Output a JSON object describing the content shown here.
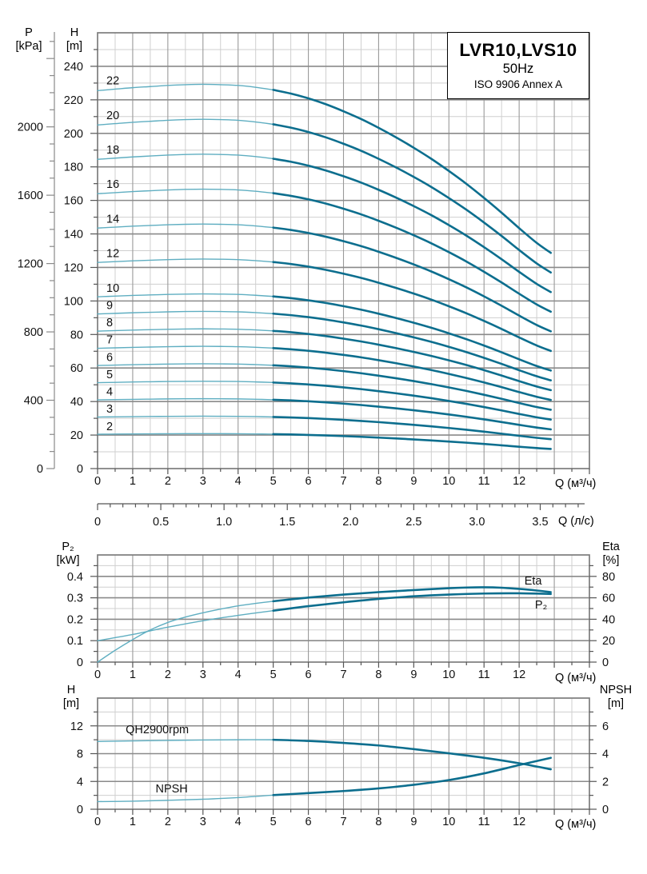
{
  "title_box": {
    "model": "LVR10,LVS10",
    "frequency": "50Hz",
    "standard": "ISO 9906 Annex A"
  },
  "colors": {
    "curve_bold": "#0c6e8e",
    "curve_thin": "#5faec1",
    "grid_minor": "#cfcfcf",
    "grid_major": "#9a9a9a",
    "frame": "#7d7d7d",
    "text": "#111111"
  },
  "axis_titles": {
    "main_pressure": "P",
    "main_pressure_unit": "[kPa]",
    "main_head": "H",
    "main_head_unit": "[m]",
    "main_x": "Q (м³/ч)",
    "secondary_x": "Q (л/с)",
    "power": "P₂",
    "power_unit": "[kW]",
    "eta": "Eta",
    "eta_unit": "[%]",
    "qh_head": "H",
    "qh_head_unit": "[m]",
    "npsh": "NPSH",
    "npsh_unit": "[m]",
    "power_x": "Q (м³/ч)",
    "npsh_x": "Q (м³/ч)"
  },
  "chart_data": [
    {
      "id": "main-qh",
      "type": "line",
      "title": "Stage head curves 2-22 stages",
      "x_axis": {
        "label": "Q (м³/ч)",
        "range": [
          0,
          14
        ],
        "tick_labels": [
          0,
          1,
          2,
          3,
          4,
          5,
          6,
          7,
          8,
          9,
          10,
          11,
          12
        ],
        "minor_step": 0.5
      },
      "x_axis_secondary": {
        "label": "Q (л/с)",
        "m3h_per_unit": 3.6,
        "tick_labels": [
          "0",
          "0.5",
          "1.0",
          "1.5",
          "2.0",
          "2.5",
          "3.0",
          "3.5"
        ],
        "minor_step": 0.1,
        "max_tick": 3.8
      },
      "y_axis_left": {
        "label": "H [m]",
        "range": [
          0,
          260
        ],
        "major_step": 20,
        "minor_step": 10,
        "tick_labels": [
          0,
          20,
          40,
          60,
          80,
          100,
          120,
          140,
          160,
          180,
          200,
          220,
          240
        ]
      },
      "y_axis_far_left": {
        "label": "P [kPa]",
        "kpa_per_m": 9.81,
        "major_step": 400,
        "minor_step": 100,
        "max": 2500,
        "tick_labels": [
          0,
          400,
          800,
          1200,
          1600,
          2000
        ]
      },
      "bold_from_q": 5,
      "curves": {
        "stages": [
          22,
          20,
          18,
          16,
          14,
          12,
          10,
          9,
          8,
          7,
          6,
          5,
          4,
          3,
          2
        ],
        "q": [
          0,
          0.5,
          1,
          1.5,
          2,
          2.5,
          3,
          3.5,
          4,
          4.5,
          5,
          5.5,
          6,
          6.5,
          7,
          7.5,
          8,
          8.5,
          9,
          9.5,
          10,
          10.5,
          11,
          11.5,
          12,
          12.5,
          12.9
        ],
        "per_stage_head": [
          10.25,
          10.29,
          10.33,
          10.36,
          10.39,
          10.41,
          10.42,
          10.41,
          10.39,
          10.34,
          10.27,
          10.17,
          10.04,
          9.88,
          9.69,
          9.48,
          9.24,
          8.98,
          8.7,
          8.4,
          8.07,
          7.72,
          7.34,
          6.94,
          6.52,
          6.12,
          5.85
        ]
      }
    },
    {
      "id": "power-efficiency",
      "type": "line",
      "title": "Power and efficiency",
      "x_axis": {
        "label": "Q (м³/ч)",
        "range": [
          0,
          14
        ],
        "tick_labels": [
          0,
          1,
          2,
          3,
          4,
          5,
          6,
          7,
          8,
          9,
          10,
          11,
          12
        ],
        "minor_step": 0.5
      },
      "y_axis_left": {
        "label": "P₂ [kW]",
        "range": [
          0,
          0.5
        ],
        "major_step": 0.1,
        "minor_step": 0.05,
        "tick_labels": [
          "0",
          "0.1",
          "0.2",
          "0.3",
          "0.4"
        ]
      },
      "y_axis_right": {
        "label": "Eta [%]",
        "range": [
          0,
          100
        ],
        "major_step": 20,
        "minor_step": 10,
        "tick_labels": [
          0,
          20,
          40,
          60,
          80
        ]
      },
      "bold_from_q": 5,
      "series": [
        {
          "name": "Eta",
          "label": "Eta",
          "axis": "right",
          "x": [
            0,
            0.5,
            1,
            1.5,
            2,
            2.5,
            3,
            3.5,
            4,
            4.5,
            5,
            6,
            7,
            8,
            9,
            10,
            10.5,
            11,
            11.5,
            12,
            12.5,
            12.9
          ],
          "y": [
            0,
            11,
            21,
            30,
            37,
            42,
            46,
            49.5,
            52.5,
            54.8,
            56.8,
            60.2,
            63,
            65.3,
            67.2,
            69,
            69.6,
            69.8,
            69.4,
            68.3,
            66.8,
            65.3
          ],
          "label_at": {
            "q": 12.15,
            "v": 72.5
          }
        },
        {
          "name": "P2",
          "label": "P₂",
          "axis": "left",
          "x": [
            0,
            1,
            2,
            3,
            4,
            5,
            6,
            7,
            8,
            9,
            10,
            11,
            12,
            12.9
          ],
          "y": [
            0.1,
            0.129,
            0.163,
            0.193,
            0.218,
            0.24,
            0.261,
            0.279,
            0.295,
            0.307,
            0.315,
            0.32,
            0.321,
            0.318
          ],
          "label_at": {
            "q": 12.45,
            "v": 0.25
          }
        }
      ]
    },
    {
      "id": "qh-npsh",
      "type": "line",
      "title": "Single stage QH and NPSH",
      "x_axis": {
        "label": "Q (м³/ч)",
        "range": [
          0,
          14
        ],
        "tick_labels": [
          0,
          1,
          2,
          3,
          4,
          5,
          6,
          7,
          8,
          9,
          10,
          11,
          12
        ],
        "minor_step": 0.5
      },
      "y_axis_left": {
        "label": "H [m]",
        "range": [
          0,
          16
        ],
        "major_step": 4,
        "minor_step": 2,
        "tick_labels": [
          0,
          4,
          8,
          12
        ]
      },
      "y_axis_right": {
        "label": "NPSH [m]",
        "range": [
          0,
          8
        ],
        "major_step": 2,
        "minor_step": 1,
        "tick_labels": [
          0,
          2,
          4,
          6
        ]
      },
      "bold_from_q": 5,
      "series": [
        {
          "name": "QH2900rpm",
          "label": "QH2900rpm",
          "axis": "left",
          "x": [
            0,
            1,
            2,
            3,
            4,
            5,
            6,
            7,
            8,
            9,
            10,
            11,
            12,
            12.9
          ],
          "y": [
            9.75,
            9.83,
            9.91,
            9.97,
            10.0,
            10.0,
            9.83,
            9.55,
            9.18,
            8.65,
            8.05,
            7.4,
            6.62,
            5.75
          ],
          "label_at": {
            "q": 0.8,
            "v": 10.95
          }
        },
        {
          "name": "NPSH",
          "label": "NPSH",
          "axis": "right",
          "x": [
            0,
            1,
            2,
            3,
            4,
            5,
            6,
            7,
            8,
            9,
            10,
            11,
            12,
            12.9
          ],
          "y": [
            0.55,
            0.58,
            0.64,
            0.72,
            0.84,
            1.02,
            1.16,
            1.31,
            1.5,
            1.76,
            2.1,
            2.58,
            3.18,
            3.7
          ],
          "label_at": {
            "q": 1.65,
            "v": 1.22
          }
        }
      ]
    }
  ]
}
